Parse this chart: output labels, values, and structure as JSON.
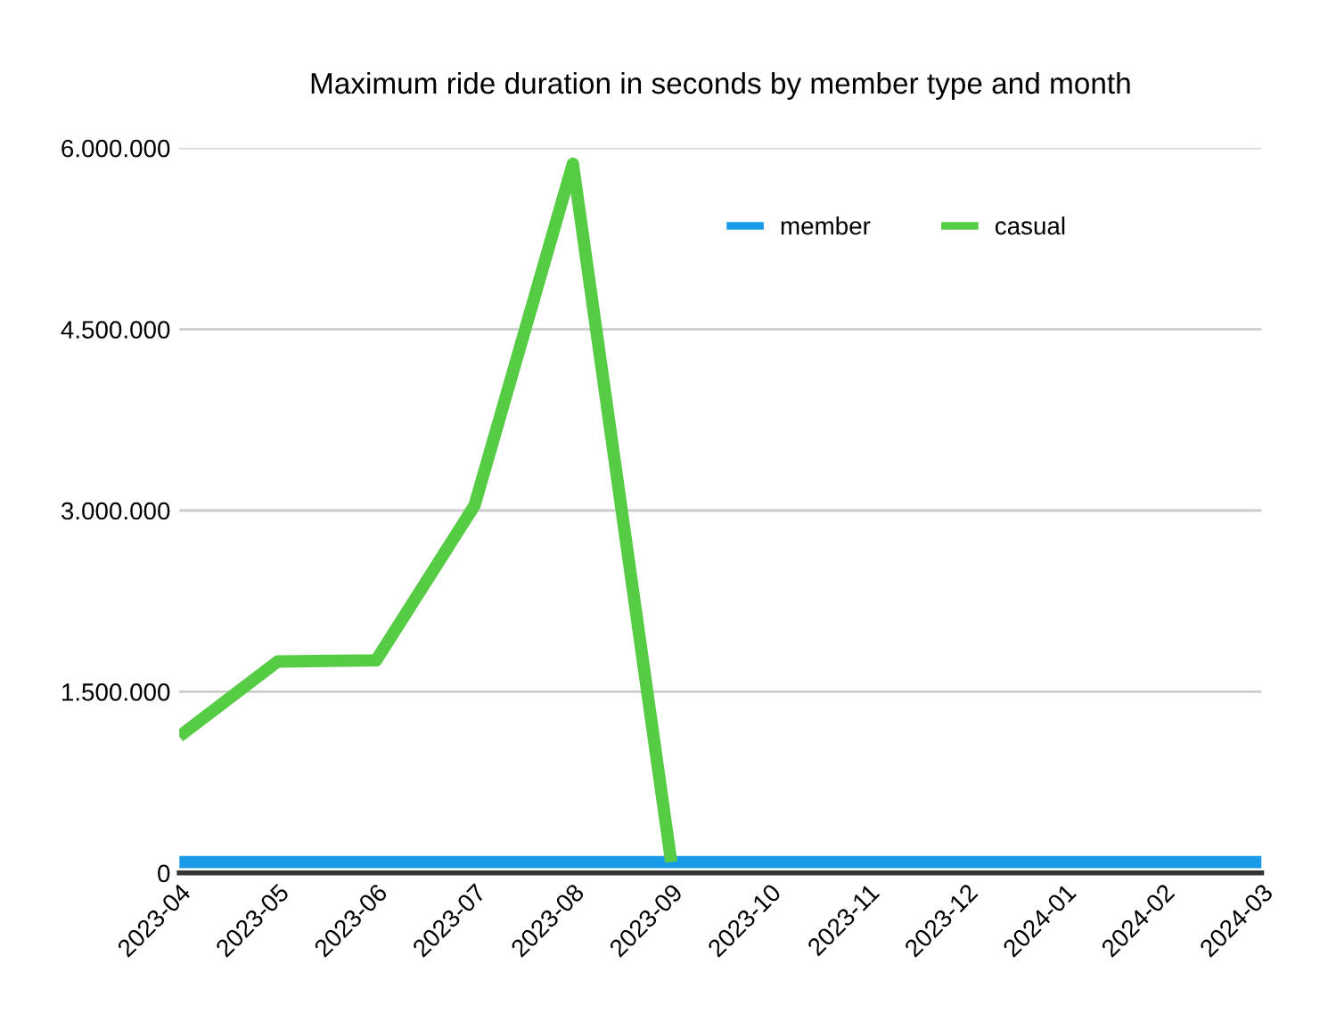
{
  "chart_data": {
    "type": "line",
    "title": "Maximum ride duration in seconds by member type and month",
    "categories": [
      "2023-04",
      "2023-05",
      "2023-06",
      "2023-07",
      "2023-08",
      "2023-09",
      "2023-10",
      "2023-11",
      "2023-12",
      "2024-01",
      "2024-02",
      "2024-03"
    ],
    "series": [
      {
        "name": "member",
        "color": "#1a9be8",
        "values": [
          90000,
          90000,
          90000,
          90000,
          90000,
          90000,
          90000,
          90000,
          90000,
          90000,
          90000,
          90000
        ]
      },
      {
        "name": "casual",
        "color": "#55cc44",
        "values": [
          1130000,
          1750000,
          1760000,
          3040000,
          5870000,
          90000,
          null,
          null,
          null,
          null,
          null,
          null
        ]
      }
    ],
    "ylim": [
      0,
      6000000
    ],
    "yticks": [
      {
        "value": 0,
        "label": "0"
      },
      {
        "value": 1500000,
        "label": "1.500.000"
      },
      {
        "value": 3000000,
        "label": "3.000.000"
      },
      {
        "value": 4500000,
        "label": "4.500.000"
      },
      {
        "value": 6000000,
        "label": "6.000.000"
      }
    ],
    "grid": "y",
    "legend": "top right",
    "marker": "none",
    "line_style": "solid"
  }
}
